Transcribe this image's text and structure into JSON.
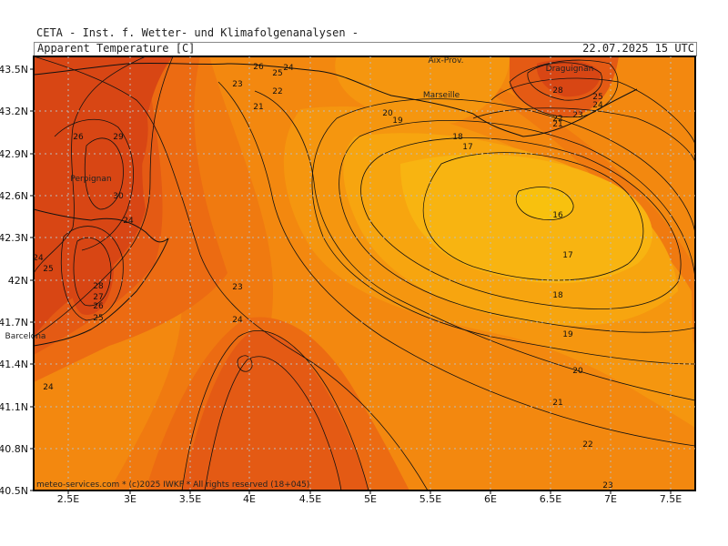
{
  "header": {
    "line": "CETA - Inst. f. Wetter- und Klimafolgenanalysen -",
    "product": "Apparent Temperature [C]",
    "datetime": "22.07.2025 15 UTC"
  },
  "footer": "meteo-services.com * (c)2025 IWKF * All rights reserved (18+045)",
  "axes": {
    "lat_ticks": [
      "43.5N",
      "43.2N",
      "42.9N",
      "42.6N",
      "42.3N",
      "42N",
      "41.7N",
      "41.4N",
      "41.1N",
      "40.8N",
      "40.5N"
    ],
    "lon_ticks": [
      "2.5E",
      "3E",
      "3.5E",
      "4E",
      "4.5E",
      "5E",
      "5.5E",
      "6E",
      "6.5E",
      "7E",
      "7.5E"
    ]
  },
  "cities": [
    "Aix-Prov.",
    "Marseille",
    "Draguignan",
    "Perpignan",
    "Barcelona"
  ],
  "contour_labels": [
    "26",
    "25",
    "24",
    "23",
    "22",
    "21",
    "20",
    "19",
    "18",
    "17",
    "26",
    "29",
    "30",
    "24",
    "24",
    "25",
    "28",
    "27",
    "26",
    "25",
    "23",
    "24",
    "24",
    "28",
    "25",
    "24",
    "22",
    "21",
    "23",
    "16",
    "17",
    "18",
    "19",
    "20",
    "21",
    "22",
    "23"
  ],
  "colors": {
    "t16": "#f8c10e",
    "t17": "#f8b411",
    "t18": "#f7a50f",
    "t19": "#f5960f",
    "t20": "#f3880f",
    "t21": "#f07a10",
    "t22": "#ec6b12",
    "t23": "#e45a14",
    "t24": "#d84614",
    "contour": "#111111",
    "frame": "#000000"
  }
}
